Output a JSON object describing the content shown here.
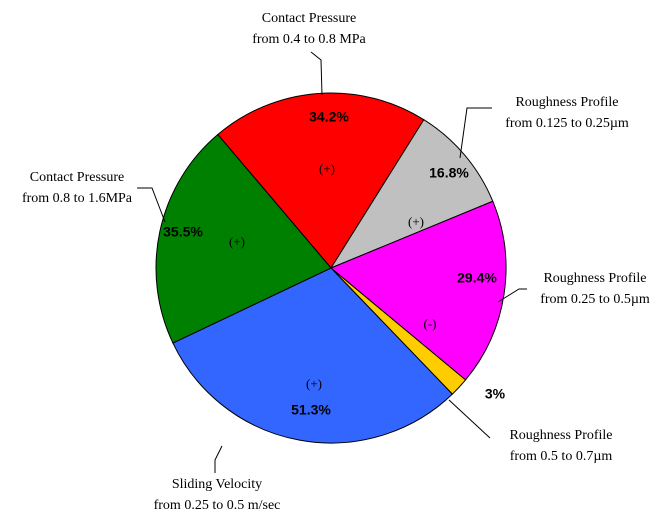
{
  "chart_data": {
    "type": "pie",
    "categories": [
      [
        "Contact Pressure",
        "from 0.4 to 0.8 MPa"
      ],
      [
        "Roughness Profile",
        "from 0.125 to 0.25µm"
      ],
      [
        "Roughness Profile",
        "from 0.25 to 0.5µm"
      ],
      [
        "Roughness Profile",
        "from 0.5 to 0.7µm"
      ],
      [
        "Sliding Velocity",
        "from 0.25 to 0.5 m/sec"
      ],
      [
        "Contact Pressure",
        "from 0.8 to 1.6MPa"
      ]
    ],
    "values": [
      34.2,
      16.8,
      29.4,
      3,
      51.3,
      35.5
    ],
    "value_labels": [
      "34.2%",
      "16.8%",
      "29.4%",
      "3%",
      "51.3%",
      "35.5%"
    ],
    "signs": [
      "(+)",
      "(+)",
      "(-)",
      null,
      "(+)",
      "(+)"
    ],
    "colors": [
      "#ff0000",
      "#c0c0c0",
      "#ff00ff",
      "#ffcc00",
      "#3366ff",
      "#008000"
    ]
  }
}
